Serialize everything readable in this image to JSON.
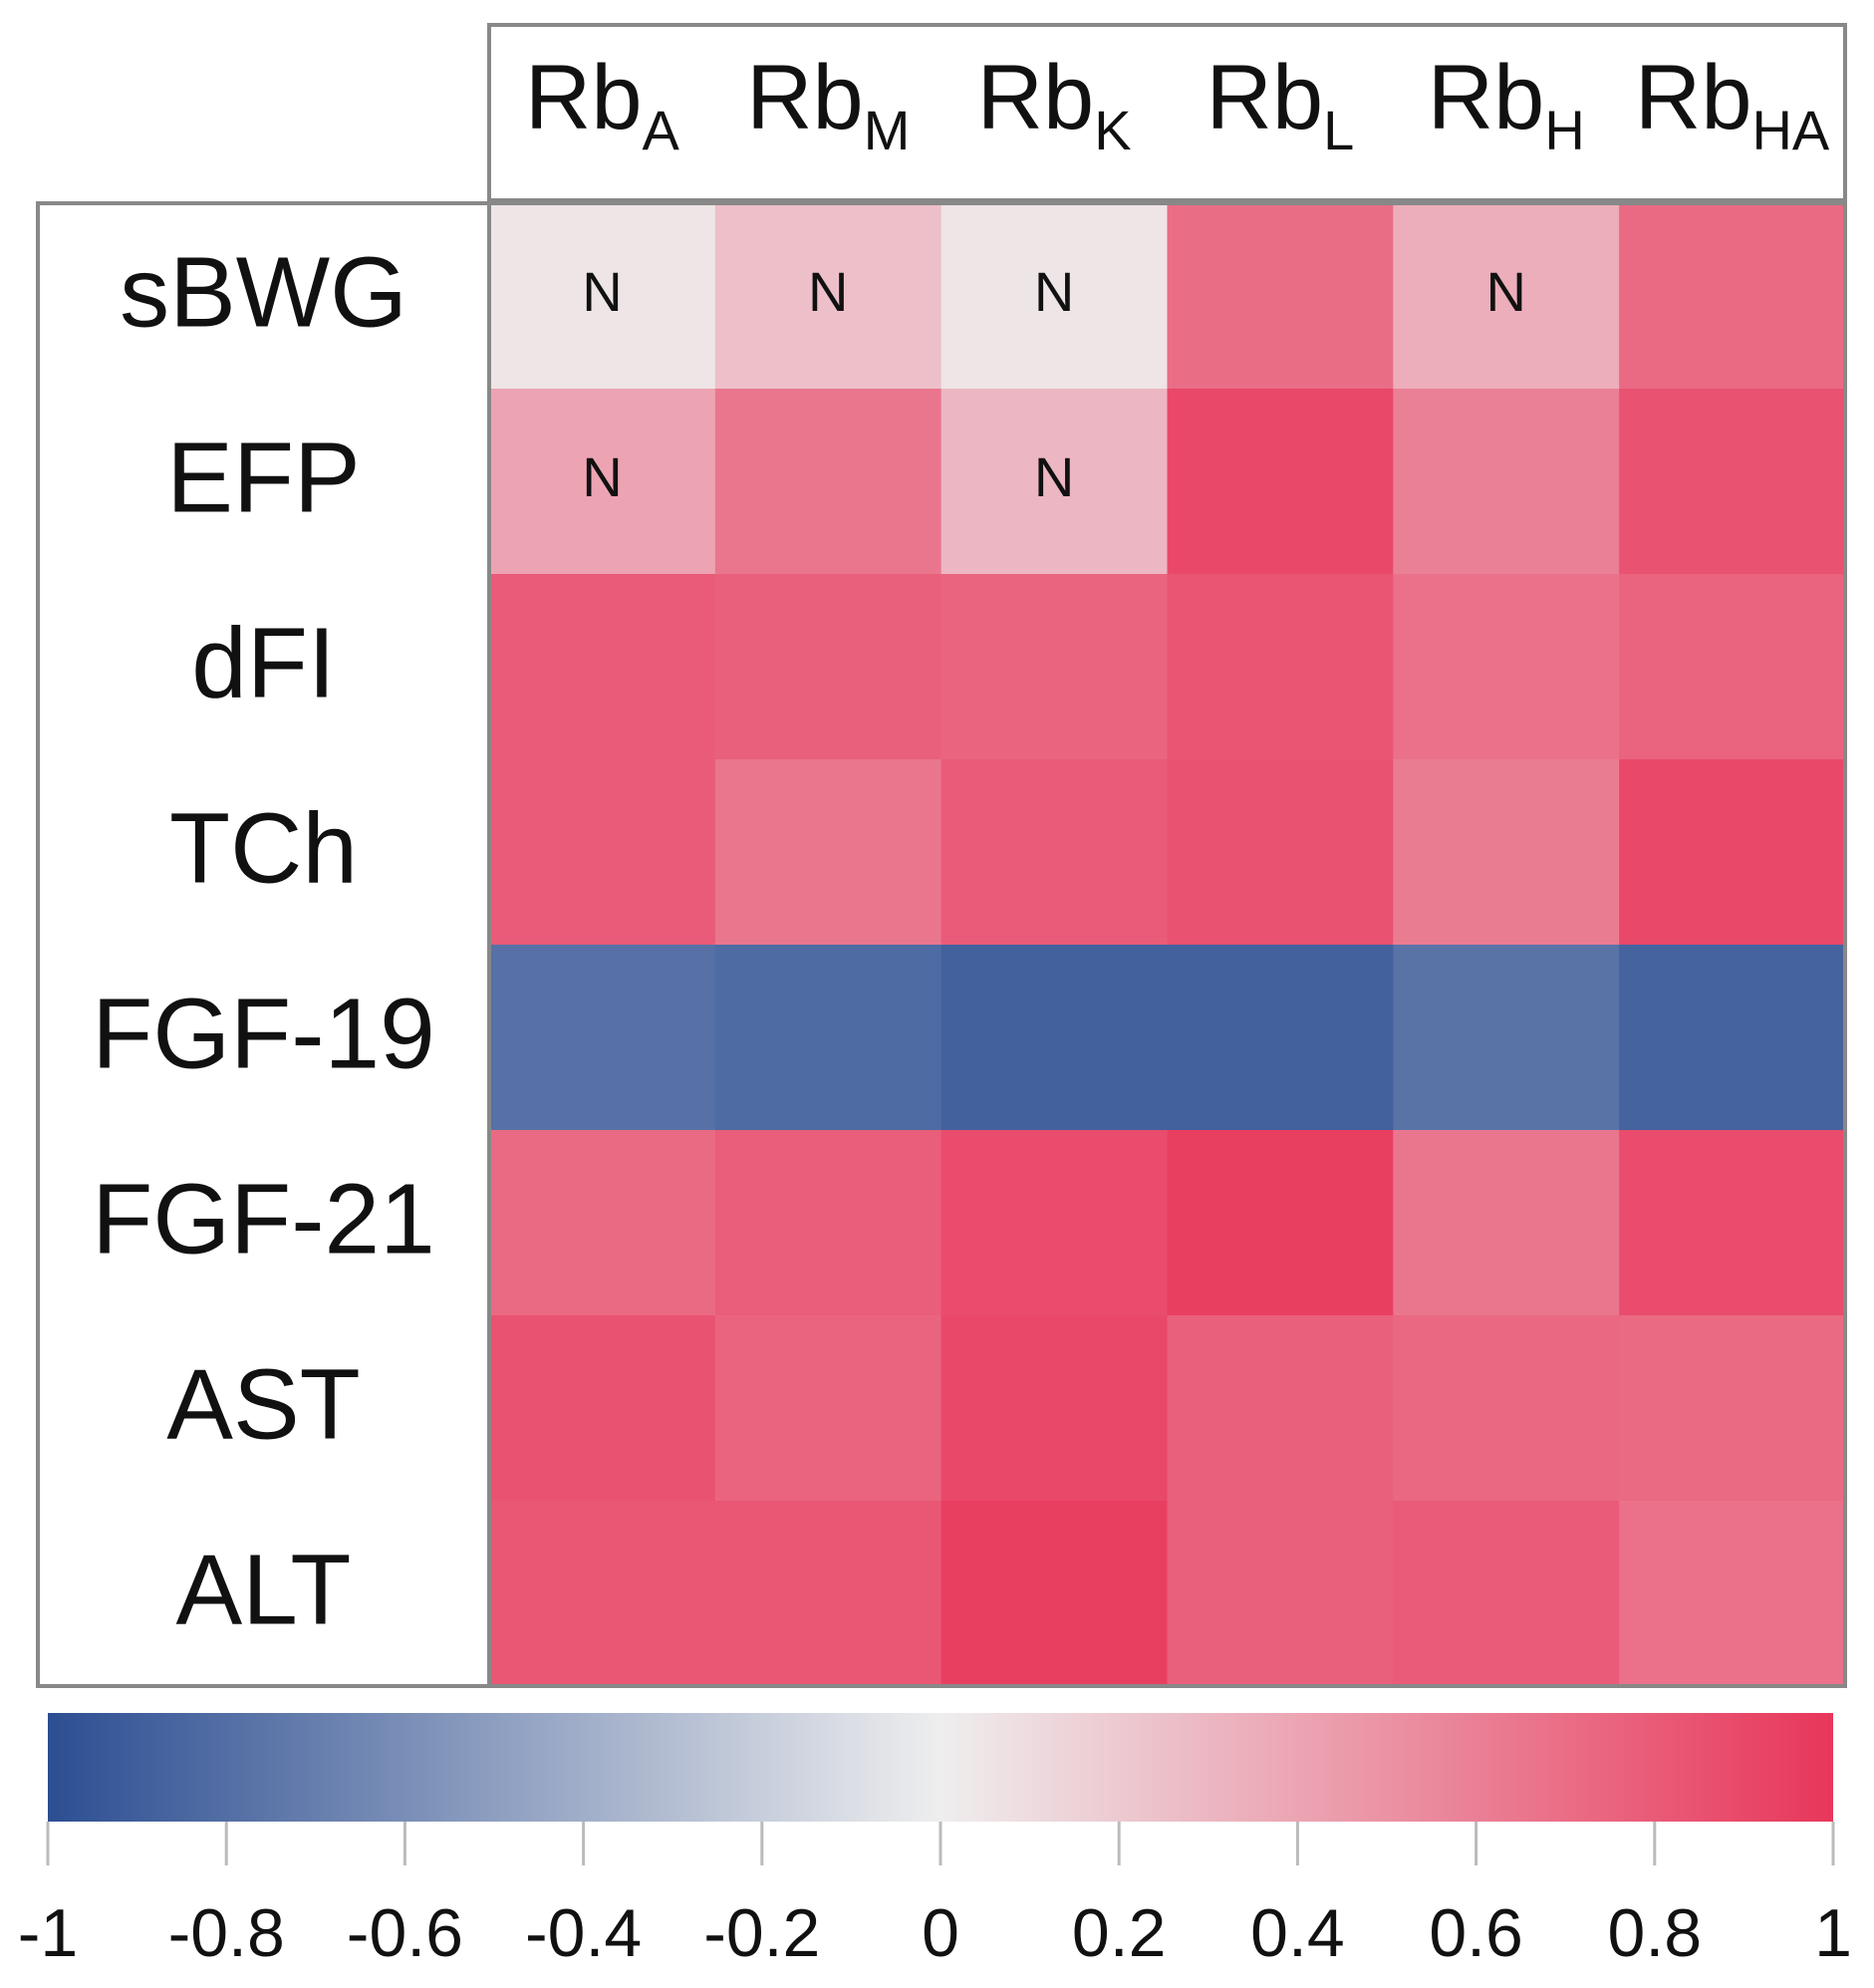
{
  "chart_data": {
    "type": "heatmap",
    "columns": [
      {
        "base": "Rb",
        "sub": "A"
      },
      {
        "base": "Rb",
        "sub": "M"
      },
      {
        "base": "Rb",
        "sub": "K"
      },
      {
        "base": "Rb",
        "sub": "L"
      },
      {
        "base": "Rb",
        "sub": "H"
      },
      {
        "base": "Rb",
        "sub": "HA"
      }
    ],
    "rows": [
      "sBWG",
      "EFP",
      "dFI",
      "TCh",
      "FGF-19",
      "FGF-21",
      "AST",
      "ALT"
    ],
    "values": [
      [
        0.05,
        0.25,
        0.05,
        0.7,
        0.35,
        0.72
      ],
      [
        0.4,
        0.65,
        0.3,
        0.9,
        0.6,
        0.85
      ],
      [
        0.8,
        0.77,
        0.75,
        0.83,
        0.68,
        0.75
      ],
      [
        0.8,
        0.65,
        0.8,
        0.85,
        0.62,
        0.9
      ],
      [
        -0.78,
        -0.82,
        -0.88,
        -0.88,
        -0.77,
        -0.87
      ],
      [
        0.72,
        0.78,
        0.88,
        0.95,
        0.65,
        0.88
      ],
      [
        0.85,
        0.75,
        0.9,
        0.77,
        0.73,
        0.72
      ],
      [
        0.82,
        0.82,
        0.95,
        0.77,
        0.8,
        0.68
      ]
    ],
    "cell_labels": [
      [
        "N",
        "N",
        "N",
        null,
        "N",
        null
      ],
      [
        "N",
        null,
        "N",
        null,
        null,
        null
      ],
      [
        null,
        null,
        null,
        null,
        null,
        null
      ],
      [
        null,
        null,
        null,
        null,
        null,
        null
      ],
      [
        null,
        null,
        null,
        null,
        null,
        null
      ],
      [
        null,
        null,
        null,
        null,
        null,
        null
      ],
      [
        null,
        null,
        null,
        null,
        null,
        null
      ],
      [
        null,
        null,
        null,
        null,
        null,
        null
      ]
    ],
    "colorscale": {
      "low": "#2c4e92",
      "mid": "#eeeeee",
      "high": "#e8365a"
    },
    "clim": [
      -1,
      1
    ],
    "colorbar_ticks": [
      -1,
      -0.8,
      -0.6,
      -0.4,
      -0.2,
      0,
      0.2,
      0.4,
      0.6,
      0.8,
      1
    ]
  }
}
